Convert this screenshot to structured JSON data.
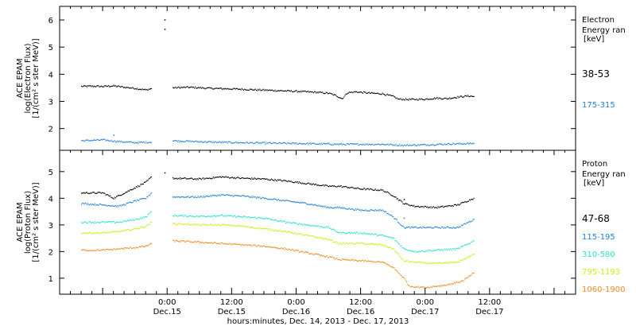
{
  "chart_data": [
    {
      "type": "scatter",
      "panel": "electron",
      "ylabel_lines": [
        "ACE EPAM",
        "log(Electron Flux)",
        "[1/(cm² s ster MeV)]"
      ],
      "yticks": [
        2,
        3,
        4,
        5,
        6
      ],
      "ylim": [
        1.2,
        6.5
      ],
      "legend_title": [
        "Electron",
        "Energy ran",
        "[keV]"
      ],
      "series": [
        {
          "name": "38-53",
          "color": "#000000",
          "segments": [
            [
              [
                -16,
                3.55
              ],
              [
                -14,
                3.56
              ],
              [
                -12,
                3.55
              ],
              [
                -10,
                3.57
              ],
              [
                -8,
                3.52
              ],
              [
                -6,
                3.48
              ],
              [
                -5,
                3.45
              ],
              [
                -4,
                3.42
              ],
              [
                -3,
                3.47
              ]
            ],
            [
              [
                1,
                3.5
              ],
              [
                4,
                3.52
              ],
              [
                8,
                3.48
              ],
              [
                12,
                3.46
              ],
              [
                16,
                3.43
              ],
              [
                20,
                3.4
              ],
              [
                24,
                3.37
              ],
              [
                28,
                3.33
              ],
              [
                30,
                3.3
              ],
              [
                31.5,
                3.2
              ],
              [
                32.5,
                3.1
              ],
              [
                33.5,
                3.32
              ],
              [
                35,
                3.35
              ],
              [
                38,
                3.3
              ],
              [
                40,
                3.28
              ],
              [
                42,
                3.18
              ],
              [
                43,
                3.08
              ],
              [
                45,
                3.07
              ],
              [
                48,
                3.08
              ],
              [
                50,
                3.12
              ],
              [
                52,
                3.1
              ],
              [
                54,
                3.16
              ],
              [
                56,
                3.2
              ],
              [
                57,
                3.18
              ]
            ]
          ],
          "isolated_points": [
            [
              -0.5,
              6.0
            ],
            [
              -0.5,
              5.65
            ]
          ]
        },
        {
          "name": "175-315",
          "color": "#1f7fd8",
          "segments": [
            [
              [
                -16,
                1.55
              ],
              [
                -12,
                1.58
              ],
              [
                -9,
                1.52
              ],
              [
                -6,
                1.48
              ],
              [
                -3,
                1.5
              ]
            ],
            [
              [
                1,
                1.55
              ],
              [
                8,
                1.5
              ],
              [
                16,
                1.47
              ],
              [
                24,
                1.45
              ],
              [
                32,
                1.42
              ],
              [
                40,
                1.42
              ],
              [
                44,
                1.38
              ],
              [
                48,
                1.4
              ],
              [
                52,
                1.43
              ],
              [
                57,
                1.45
              ]
            ]
          ],
          "isolated_points": [
            [
              -10,
              1.75
            ]
          ]
        }
      ]
    },
    {
      "type": "scatter",
      "panel": "proton",
      "ylabel_lines": [
        "ACE EPAM",
        "log(Proton Flux)",
        "[1/(cm² s ster MeV)]"
      ],
      "yticks": [
        1,
        2,
        3,
        4,
        5
      ],
      "ylim": [
        0.4,
        5.8
      ],
      "legend_title": [
        "Proton",
        "Energy ran",
        "[keV]"
      ],
      "series": [
        {
          "name": "47-68",
          "color": "#000000",
          "segments": [
            [
              [
                -16,
                4.2
              ],
              [
                -12,
                4.2
              ],
              [
                -10,
                4.0
              ],
              [
                -8,
                4.2
              ],
              [
                -6,
                4.4
              ],
              [
                -4,
                4.6
              ],
              [
                -3,
                4.8
              ]
            ],
            [
              [
                1,
                4.75
              ],
              [
                6,
                4.72
              ],
              [
                10,
                4.8
              ],
              [
                14,
                4.75
              ],
              [
                18,
                4.72
              ],
              [
                22,
                4.65
              ],
              [
                26,
                4.55
              ],
              [
                30,
                4.45
              ],
              [
                32,
                4.45
              ],
              [
                36,
                4.35
              ],
              [
                40,
                4.3
              ],
              [
                42,
                4.1
              ],
              [
                44,
                3.8
              ],
              [
                46,
                3.7
              ],
              [
                50,
                3.65
              ],
              [
                54,
                3.75
              ],
              [
                57,
                4.0
              ]
            ]
          ],
          "isolated_points": [
            [
              -0.5,
              4.95
            ],
            [
              44,
              3.95
            ]
          ]
        },
        {
          "name": "115-195",
          "color": "#1f7fd8",
          "segments": [
            [
              [
                -16,
                3.8
              ],
              [
                -12,
                3.75
              ],
              [
                -9,
                3.7
              ],
              [
                -6,
                3.9
              ],
              [
                -4,
                4.0
              ],
              [
                -3,
                4.2
              ]
            ],
            [
              [
                1,
                4.05
              ],
              [
                6,
                4.05
              ],
              [
                10,
                4.12
              ],
              [
                14,
                4.08
              ],
              [
                18,
                4.0
              ],
              [
                22,
                3.9
              ],
              [
                26,
                3.8
              ],
              [
                30,
                3.65
              ],
              [
                32,
                3.65
              ],
              [
                36,
                3.55
              ],
              [
                40,
                3.55
              ],
              [
                42,
                3.3
              ],
              [
                44,
                2.9
              ],
              [
                46,
                2.9
              ],
              [
                50,
                2.9
              ],
              [
                54,
                2.9
              ],
              [
                57,
                3.2
              ]
            ]
          ],
          "isolated_points": [
            [
              44,
              3.25
            ]
          ]
        },
        {
          "name": "310-580",
          "color": "#2fe0cf",
          "segments": [
            [
              [
                -16,
                3.1
              ],
              [
                -12,
                3.1
              ],
              [
                -9,
                3.1
              ],
              [
                -6,
                3.2
              ],
              [
                -4,
                3.3
              ],
              [
                -3,
                3.5
              ]
            ],
            [
              [
                1,
                3.35
              ],
              [
                6,
                3.32
              ],
              [
                10,
                3.35
              ],
              [
                14,
                3.3
              ],
              [
                18,
                3.25
              ],
              [
                22,
                3.1
              ],
              [
                26,
                3.0
              ],
              [
                30,
                2.9
              ],
              [
                32,
                2.7
              ],
              [
                36,
                2.7
              ],
              [
                40,
                2.6
              ],
              [
                42,
                2.5
              ],
              [
                44,
                2.1
              ],
              [
                46,
                2.0
              ],
              [
                50,
                2.05
              ],
              [
                54,
                2.1
              ],
              [
                57,
                2.4
              ]
            ]
          ],
          "isolated_points": []
        },
        {
          "name": "795-1193",
          "color": "#c8f016",
          "segments": [
            [
              [
                -16,
                2.7
              ],
              [
                -12,
                2.7
              ],
              [
                -9,
                2.75
              ],
              [
                -6,
                2.85
              ],
              [
                -4,
                2.95
              ],
              [
                -3,
                3.1
              ]
            ],
            [
              [
                1,
                3.05
              ],
              [
                6,
                3.0
              ],
              [
                10,
                3.0
              ],
              [
                14,
                2.95
              ],
              [
                18,
                2.85
              ],
              [
                22,
                2.75
              ],
              [
                26,
                2.6
              ],
              [
                30,
                2.45
              ],
              [
                32,
                2.3
              ],
              [
                36,
                2.3
              ],
              [
                40,
                2.25
              ],
              [
                42,
                2.1
              ],
              [
                44,
                1.65
              ],
              [
                46,
                1.6
              ],
              [
                50,
                1.55
              ],
              [
                54,
                1.6
              ],
              [
                57,
                1.9
              ]
            ]
          ],
          "isolated_points": []
        },
        {
          "name": "1060-1900",
          "color": "#f08a1e",
          "segments": [
            [
              [
                -16,
                2.05
              ],
              [
                -12,
                2.05
              ],
              [
                -9,
                2.1
              ],
              [
                -6,
                2.15
              ],
              [
                -4,
                2.2
              ],
              [
                -3,
                2.3
              ]
            ],
            [
              [
                1,
                2.4
              ],
              [
                6,
                2.35
              ],
              [
                10,
                2.3
              ],
              [
                14,
                2.25
              ],
              [
                18,
                2.2
              ],
              [
                22,
                2.1
              ],
              [
                26,
                1.95
              ],
              [
                30,
                1.8
              ],
              [
                32,
                1.7
              ],
              [
                36,
                1.65
              ],
              [
                40,
                1.6
              ],
              [
                42,
                1.4
              ],
              [
                44,
                1.0
              ],
              [
                45,
                0.7
              ],
              [
                48,
                0.65
              ],
              [
                52,
                0.75
              ],
              [
                55,
                0.9
              ],
              [
                57,
                1.2
              ]
            ]
          ],
          "isolated_points": []
        }
      ]
    }
  ],
  "xaxis": {
    "xlim": [
      -20,
      76
    ],
    "ticks": [
      {
        "x": 0,
        "time": "0:00",
        "date": "Dec.15"
      },
      {
        "x": 12,
        "time": "12:00",
        "date": "Dec.15"
      },
      {
        "x": 24,
        "time": "0:00",
        "date": "Dec.16"
      },
      {
        "x": 36,
        "time": "12:00",
        "date": "Dec.16"
      },
      {
        "x": 48,
        "time": "0:00",
        "date": "Dec.17"
      },
      {
        "x": 60,
        "time": "12:00",
        "date": "Dec.17"
      }
    ],
    "xlabel": "hours:minutes, Dec. 14, 2013 - Dec. 17, 2013"
  }
}
